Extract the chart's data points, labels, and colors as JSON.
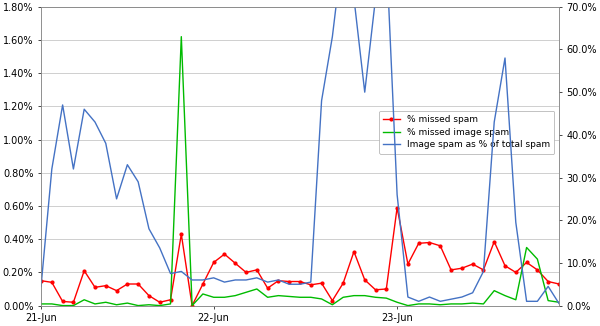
{
  "left_ylim": [
    0.0,
    0.018
  ],
  "right_ylim": [
    0.0,
    0.7
  ],
  "left_yticks": [
    0.0,
    0.002,
    0.004,
    0.006,
    0.008,
    0.01,
    0.012,
    0.014,
    0.016,
    0.018
  ],
  "left_yticklabels": [
    "0.00%",
    "0.20%",
    "0.40%",
    "0.60%",
    "0.80%",
    "1.00%",
    "1.20%",
    "1.40%",
    "1.60%",
    "1.80%"
  ],
  "right_yticks": [
    0.0,
    0.1,
    0.2,
    0.3,
    0.4,
    0.5,
    0.6,
    0.7
  ],
  "right_yticklabels": [
    "0.0%",
    "10.0%",
    "20.0%",
    "30.0%",
    "40.0%",
    "50.0%",
    "60.0%",
    "70.0%"
  ],
  "xtick_labels": [
    "21-Jun",
    "22-Jun",
    "23-Jun"
  ],
  "xtick_pos": [
    0,
    16,
    33
  ],
  "n_points": 49,
  "legend_labels": [
    "% missed spam",
    "% missed image spam",
    "Image spam as % of total spam"
  ],
  "legend_colors": [
    "#FF0000",
    "#00BB00",
    "#4472C4"
  ],
  "line_red": [
    0.0015,
    0.0014,
    0.00025,
    0.0002,
    0.0021,
    0.0011,
    0.0012,
    0.0009,
    0.0013,
    0.0013,
    0.0006,
    0.0002,
    0.00035,
    0.0043,
    0.0,
    0.0013,
    0.0026,
    0.0031,
    0.00255,
    0.002,
    0.00215,
    0.00105,
    0.0015,
    0.00145,
    0.00145,
    0.00125,
    0.00135,
    0.0003,
    0.00135,
    0.00325,
    0.00155,
    0.00095,
    0.001,
    0.0059,
    0.0025,
    0.00375,
    0.0038,
    0.0036,
    0.00215,
    0.00225,
    0.0025,
    0.00215,
    0.00385,
    0.0024,
    0.002,
    0.0026,
    0.00215,
    0.00145,
    0.0013
  ],
  "line_green": [
    0.0001,
    0.0001,
    0.0,
    0.0,
    0.00035,
    0.0001,
    0.0002,
    5e-05,
    0.00015,
    0.0,
    5e-05,
    0.0,
    0.0001,
    0.0162,
    0.0,
    0.0007,
    0.0005,
    0.0005,
    0.0006,
    0.0008,
    0.001,
    0.0005,
    0.0006,
    0.00055,
    0.0005,
    0.0005,
    0.0004,
    5e-05,
    0.0005,
    0.0006,
    0.0006,
    0.0005,
    0.00045,
    0.0002,
    0.0,
    0.0001,
    0.0001,
    5e-05,
    0.0001,
    0.0001,
    0.00015,
    0.0001,
    0.0009,
    0.0006,
    0.00035,
    0.0035,
    0.0028,
    0.0003,
    0.0002
  ],
  "line_blue": [
    0.045,
    0.32,
    0.47,
    0.32,
    0.46,
    0.43,
    0.38,
    0.25,
    0.33,
    0.29,
    0.18,
    0.135,
    0.075,
    0.08,
    0.06,
    0.06,
    0.065,
    0.055,
    0.06,
    0.06,
    0.065,
    0.055,
    0.06,
    0.05,
    0.05,
    0.055,
    0.48,
    0.63,
    0.84,
    0.72,
    0.5,
    0.72,
    0.83,
    0.26,
    0.02,
    0.01,
    0.02,
    0.01,
    0.015,
    0.02,
    0.03,
    0.08,
    0.43,
    0.58,
    0.195,
    0.01,
    0.01,
    0.045,
    0.005
  ],
  "bg_color": "#FFFFFF",
  "grid_color": "#C8C8C8",
  "line_width": 1.0,
  "marker_red": "o",
  "marker_size_red": 2.0,
  "figsize": [
    6.0,
    3.26
  ],
  "dpi": 100
}
